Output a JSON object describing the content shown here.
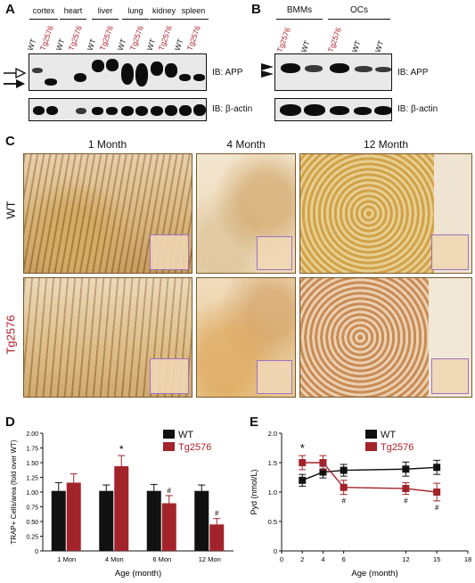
{
  "panel_a": {
    "letter": "A",
    "tissues": [
      "cortex",
      "heart",
      "liver",
      "lung",
      "kidney",
      "spleen"
    ],
    "lanes": [
      "WT",
      "Tg2576",
      "WT",
      "Tg2576",
      "WT",
      "Tg2576",
      "WT",
      "Tg2576",
      "WT",
      "Tg2576",
      "WT",
      "Tg2576"
    ],
    "ib_top": "IB: APP",
    "ib_bottom": "IB: β-actin"
  },
  "panel_b": {
    "letter": "B",
    "groups": [
      "BMMs",
      "OCs"
    ],
    "lanes": [
      "Tg2576",
      "WT",
      "Tg2576",
      "WT",
      "WT"
    ],
    "ib_top": "IB: APP",
    "ib_bottom": "IB: β-actin"
  },
  "panel_c": {
    "letter": "C",
    "columns": [
      "1 Month",
      "4 Month",
      "12 Month"
    ],
    "rows": [
      "WT",
      "Tg2576"
    ]
  },
  "colors": {
    "wt": "#111111",
    "tg": "#a3232a"
  },
  "chart_data": [
    {
      "panel": "D",
      "type": "bar",
      "categories": [
        "1 Mon",
        "4 Mon",
        "6 Mon",
        "12 Mon"
      ],
      "series": [
        {
          "name": "WT",
          "values": [
            1.02,
            1.02,
            1.02,
            1.02
          ],
          "errors": [
            0.14,
            0.1,
            0.11,
            0.1
          ]
        },
        {
          "name": "Tg2576",
          "values": [
            1.16,
            1.44,
            0.81,
            0.45
          ],
          "errors": [
            0.15,
            0.18,
            0.13,
            0.1
          ]
        }
      ],
      "annotations": [
        {
          "category": "4 Mon",
          "series": "Tg2576",
          "text": "*"
        },
        {
          "category": "6 Mon",
          "series": "Tg2576",
          "text": "#"
        },
        {
          "category": "12 Mon",
          "series": "Tg2576",
          "text": "#"
        }
      ],
      "xlabel": "Age (month)",
      "ylabel": "TRAP+ Cells/area (fold over WT)",
      "ylim": [
        0,
        2.0
      ],
      "yticks": [
        "0",
        "0.25",
        "0.50",
        "0.75",
        "1.00",
        "1.25",
        "1.50",
        "1.75",
        "2.00"
      ],
      "legend_position": "top-right"
    },
    {
      "panel": "E",
      "type": "line",
      "x": [
        2,
        4,
        6,
        12,
        15
      ],
      "series": [
        {
          "name": "WT",
          "values": [
            1.2,
            1.34,
            1.37,
            1.39,
            1.42
          ],
          "errors": [
            0.1,
            0.1,
            0.1,
            0.12,
            0.12
          ]
        },
        {
          "name": "Tg2576",
          "values": [
            1.5,
            1.5,
            1.08,
            1.06,
            1.0
          ],
          "errors": [
            0.12,
            0.12,
            0.12,
            0.1,
            0.15
          ]
        }
      ],
      "annotations": [
        {
          "x": 2,
          "series": "Tg2576",
          "text": "*"
        },
        {
          "x": 6,
          "series": "Tg2576",
          "text": "#"
        },
        {
          "x": 12,
          "series": "Tg2576",
          "text": "#"
        },
        {
          "x": 15,
          "series": "Tg2576",
          "text": "#"
        }
      ],
      "xlabel": "Age (month)",
      "ylabel": "Pyd (nmol/L)",
      "xlim": [
        0,
        18
      ],
      "xticks": [
        "0",
        "2",
        "4",
        "6",
        "12",
        "15",
        "18"
      ],
      "ylim": [
        0,
        2.0
      ],
      "yticks": [
        "0",
        "0.5",
        "1.0",
        "1.5",
        "2.0"
      ],
      "legend_position": "top-right"
    }
  ]
}
